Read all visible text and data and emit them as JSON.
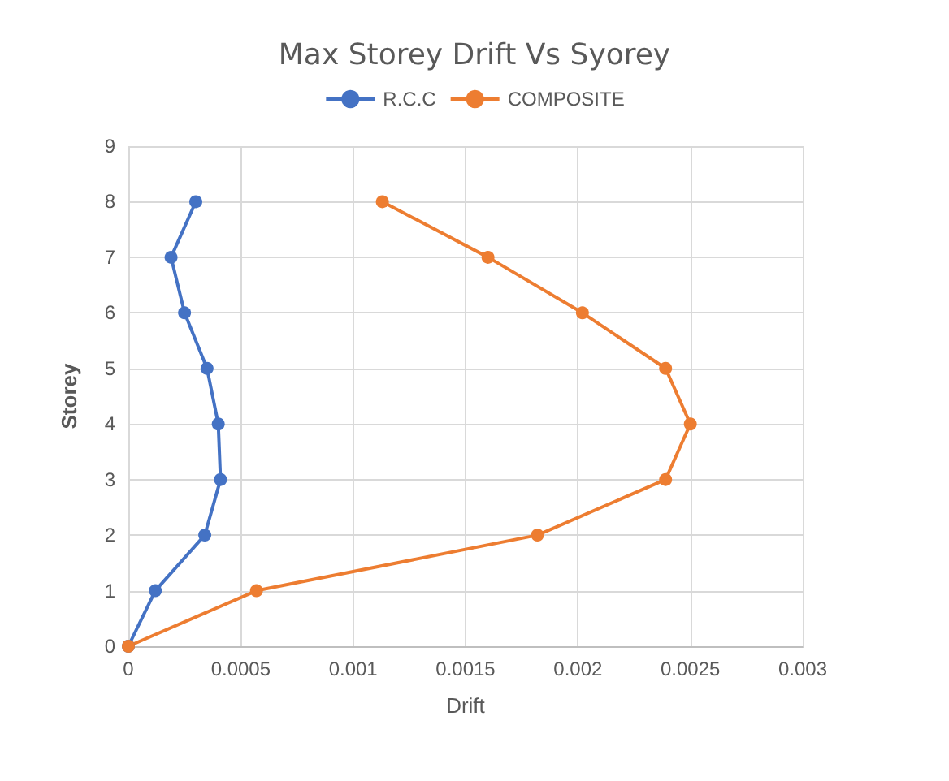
{
  "chart_data": {
    "type": "line",
    "title": "Max Storey Drift Vs Syorey",
    "xlabel": "Drift",
    "ylabel": "Storey",
    "xlim": [
      0,
      0.003
    ],
    "xticks": [
      0,
      0.0005,
      0.001,
      0.0015,
      0.002,
      0.0025,
      0.003
    ],
    "ylim": [
      0,
      9
    ],
    "yticks": [
      0,
      1,
      2,
      3,
      4,
      5,
      6,
      7,
      8,
      9
    ],
    "grid": true,
    "legend": "top",
    "marker": "circle",
    "line_style": "solid",
    "series": [
      {
        "name": "R.C.C",
        "color": "#4472c4",
        "x": [
          0,
          0.00012,
          0.00034,
          0.00041,
          0.0004,
          0.00035,
          0.00025,
          0.00019,
          0.0003
        ],
        "values": [
          0,
          1,
          2,
          3,
          4,
          5,
          6,
          7,
          8
        ]
      },
      {
        "name": "COMPOSITE",
        "color": "#ed7d31",
        "x": [
          0,
          0.00057,
          0.00182,
          0.00239,
          0.0025,
          0.00239,
          0.00202,
          0.0016,
          0.00113
        ],
        "values": [
          0,
          1,
          2,
          3,
          4,
          5,
          6,
          7,
          8
        ]
      }
    ]
  }
}
